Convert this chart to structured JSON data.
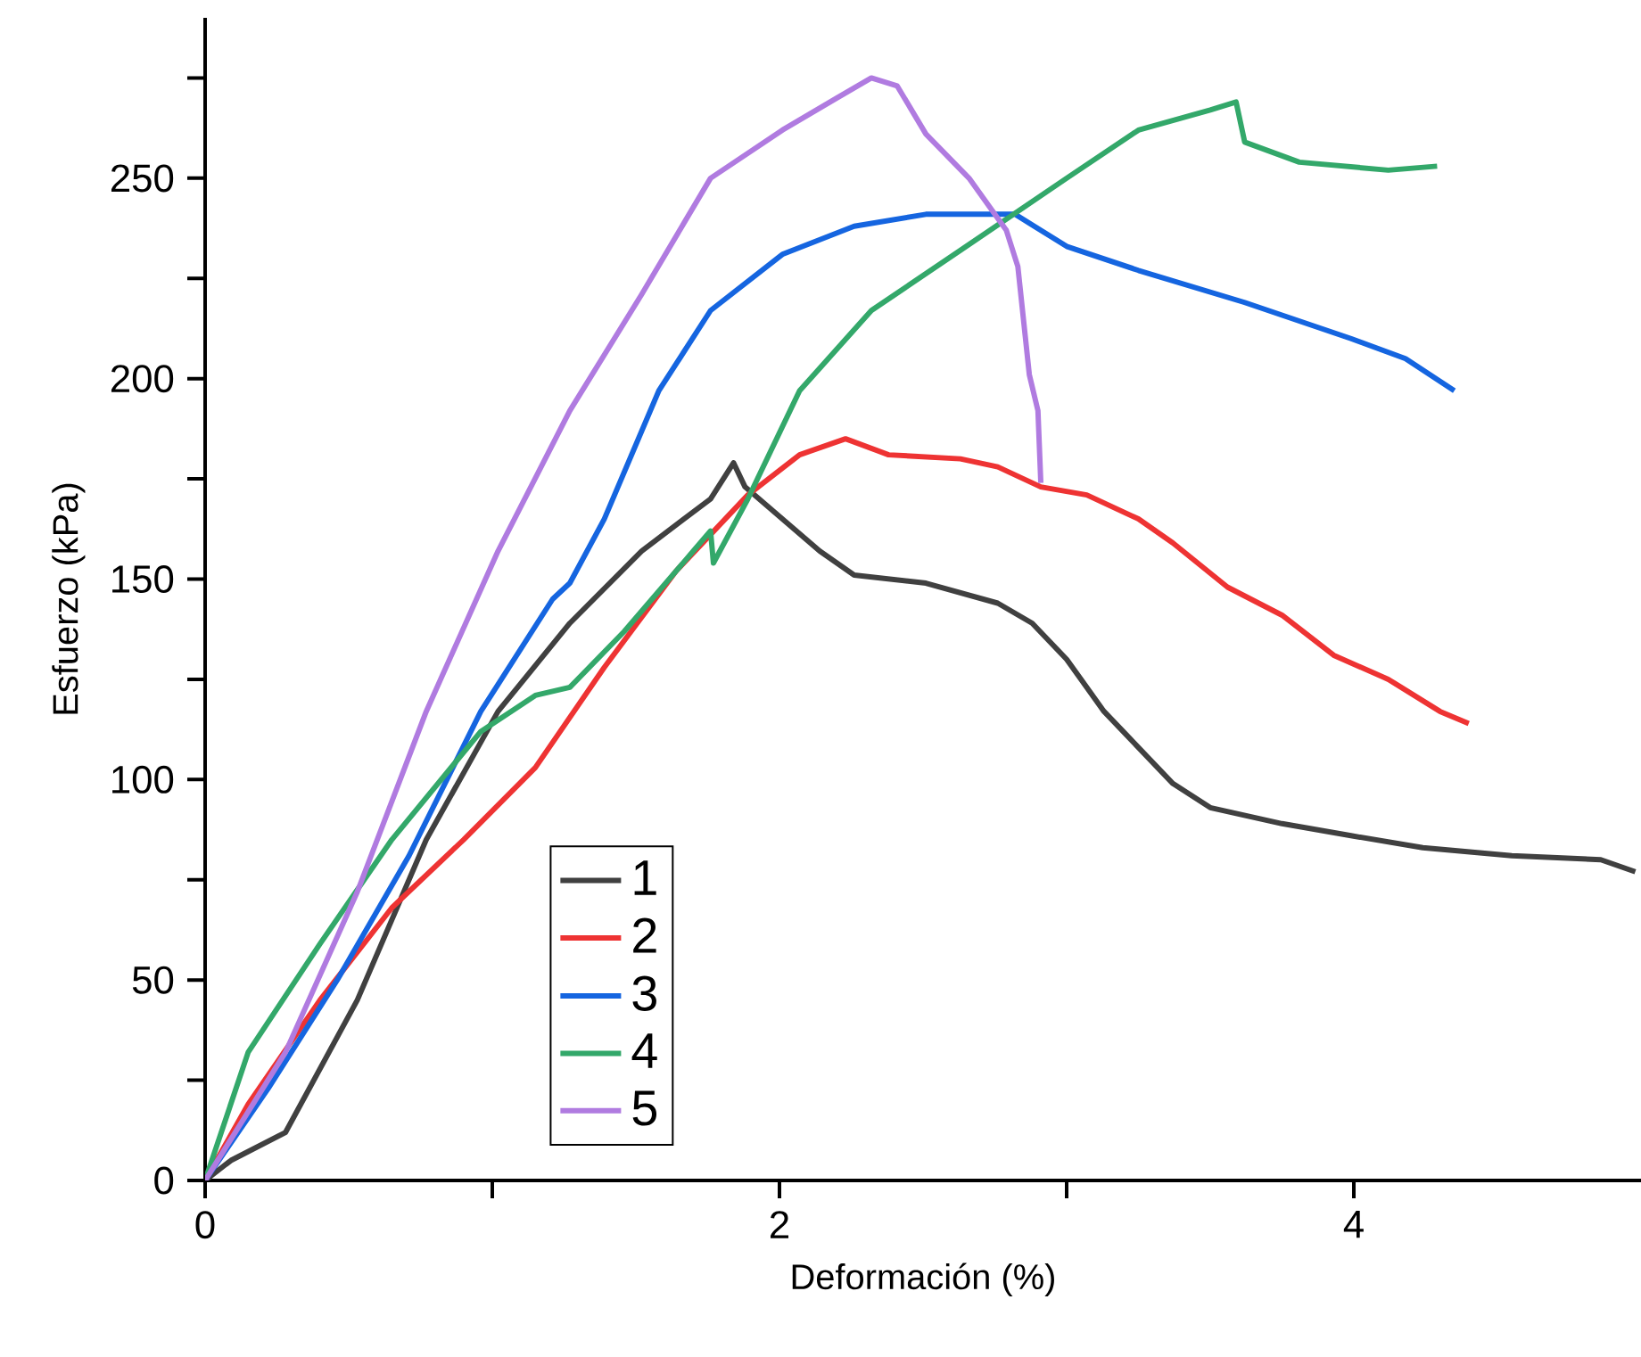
{
  "chart_data": {
    "type": "line",
    "xlabel": "Deformación (%)",
    "ylabel": "Esfuerzo (kPa)",
    "xlim": [
      0,
      5
    ],
    "ylim": [
      0,
      290
    ],
    "xticks": [
      0,
      {
        "value": 1,
        "label": null
      },
      2,
      {
        "value": 3,
        "label": null
      },
      4
    ],
    "yticks": [
      0,
      {
        "value": 25,
        "label": null
      },
      50,
      {
        "value": 75,
        "label": null
      },
      100,
      {
        "value": 125,
        "label": null
      },
      150,
      {
        "value": 175,
        "label": null
      },
      200,
      {
        "value": 225,
        "label": null
      },
      250,
      {
        "value": 275,
        "label": null
      }
    ],
    "legend": "bottom left",
    "series": [
      {
        "name": "1",
        "color": "#404040",
        "x": [
          0,
          0.09,
          0.28,
          0.53,
          0.77,
          1.02,
          1.27,
          1.52,
          1.76,
          1.84,
          1.88,
          2.01,
          2.14,
          2.26,
          2.51,
          2.76,
          2.88,
          3.0,
          3.13,
          3.25,
          3.37,
          3.5,
          3.75,
          3.99,
          4.24,
          4.55,
          4.86,
          4.98
        ],
        "values": [
          0,
          5,
          12,
          45,
          85,
          117,
          139,
          157,
          170,
          179,
          173,
          165,
          157,
          151,
          149,
          144,
          139,
          130,
          117,
          108,
          99,
          93,
          89,
          86,
          83,
          81,
          80,
          77
        ]
      },
      {
        "name": "2",
        "color": "#ee3333",
        "x": [
          0,
          0.15,
          0.4,
          0.65,
          0.9,
          1.15,
          1.39,
          1.64,
          1.89,
          2.07,
          2.23,
          2.38,
          2.63,
          2.76,
          2.91,
          3.07,
          3.25,
          3.37,
          3.56,
          3.75,
          3.93,
          4.12,
          4.3,
          4.4
        ],
        "values": [
          0,
          19,
          45,
          68,
          85,
          103,
          128,
          152,
          171,
          181,
          185,
          181,
          180,
          178,
          173,
          171,
          165,
          159,
          148,
          141,
          131,
          125,
          117,
          114
        ]
      },
      {
        "name": "3",
        "color": "#1565e0",
        "x": [
          0,
          0.22,
          0.46,
          0.71,
          0.96,
          1.21,
          1.27,
          1.39,
          1.58,
          1.76,
          2.01,
          2.26,
          2.51,
          2.82,
          3.0,
          3.25,
          3.62,
          3.99,
          4.18,
          4.35
        ],
        "values": [
          0,
          23,
          50,
          81,
          117,
          145,
          149,
          165,
          197,
          217,
          231,
          238,
          241,
          241,
          233,
          227,
          219,
          210,
          205,
          197
        ]
      },
      {
        "name": "4",
        "color": "#33a86a",
        "x": [
          0,
          0.15,
          0.4,
          0.65,
          0.96,
          1.15,
          1.27,
          1.46,
          1.7,
          1.76,
          1.77,
          1.89,
          2.07,
          2.32,
          2.63,
          3.0,
          3.25,
          3.5,
          3.59,
          3.62,
          3.81,
          4.12,
          4.29
        ],
        "values": [
          0,
          32,
          59,
          85,
          112,
          121,
          123,
          137,
          157,
          162,
          154,
          170,
          197,
          217,
          232,
          250,
          262,
          267,
          269,
          259,
          254,
          252,
          253
        ]
      },
      {
        "name": "5",
        "color": "#b07be0",
        "x": [
          0,
          0.28,
          0.53,
          0.77,
          1.02,
          1.27,
          1.52,
          1.76,
          2.01,
          2.2,
          2.32,
          2.41,
          2.51,
          2.66,
          2.79,
          2.83,
          2.87,
          2.9,
          2.91
        ],
        "values": [
          0,
          32,
          72,
          117,
          157,
          192,
          221,
          250,
          262,
          270,
          275,
          273,
          261,
          250,
          237,
          228,
          201,
          192,
          174
        ]
      }
    ]
  }
}
